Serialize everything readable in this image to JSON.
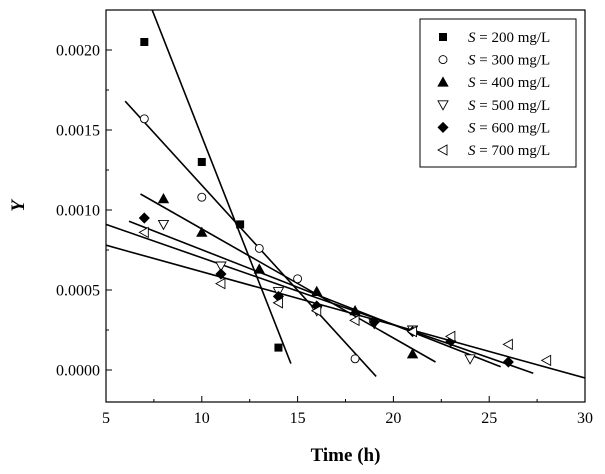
{
  "chart_data": {
    "type": "scatter",
    "title": "",
    "xlabel": "Time (h)",
    "ylabel": "Y",
    "xlim": [
      5,
      30
    ],
    "ylim": [
      -0.0002,
      0.00225
    ],
    "x_ticks": [
      5,
      10,
      15,
      20,
      25,
      30
    ],
    "x_tick_labels": [
      "5",
      "10",
      "15",
      "20",
      "25",
      "30"
    ],
    "y_ticks": [
      0.0,
      0.0005,
      0.001,
      0.0015,
      0.002
    ],
    "y_tick_labels": [
      "0.0000",
      "0.0005",
      "0.0010",
      "0.0015",
      "0.0020"
    ],
    "grid": false,
    "legend_position": "top-right",
    "series": [
      {
        "name": "S = 200 mg/L",
        "legend_italic": "S",
        "legend_rest": " = 200 mg/L",
        "marker": "square-filled",
        "points": [
          [
            7,
            0.00205
          ],
          [
            10,
            0.0013
          ],
          [
            12,
            0.00091
          ],
          [
            14,
            0.00014
          ]
        ],
        "fit_line": [
          [
            7.05,
            0.00236
          ],
          [
            14.65,
            4e-05
          ]
        ]
      },
      {
        "name": "S = 300 mg/L",
        "legend_italic": "S",
        "legend_rest": " = 300 mg/L",
        "marker": "circle-open",
        "points": [
          [
            7,
            0.00157
          ],
          [
            10,
            0.00108
          ],
          [
            13,
            0.00076
          ],
          [
            15,
            0.00057
          ],
          [
            18,
            7e-05
          ]
        ],
        "fit_line": [
          [
            6,
            0.00168
          ],
          [
            19.1,
            -4e-05
          ]
        ]
      },
      {
        "name": "S = 400 mg/L",
        "legend_italic": "S",
        "legend_rest": " = 400 mg/L",
        "marker": "triangle-up-filled",
        "points": [
          [
            8,
            0.00107
          ],
          [
            10,
            0.00086
          ],
          [
            13,
            0.00063
          ],
          [
            16,
            0.00049
          ],
          [
            18,
            0.00037
          ],
          [
            21,
            0.0001
          ]
        ],
        "fit_line": [
          [
            6.8,
            0.0011
          ],
          [
            22.2,
            5e-05
          ]
        ]
      },
      {
        "name": "S = 500 mg/L",
        "legend_italic": "S",
        "legend_rest": " = 500 mg/L",
        "marker": "triangle-down-open",
        "points": [
          [
            8,
            0.00091
          ],
          [
            11,
            0.00065
          ],
          [
            14,
            0.00049
          ],
          [
            16,
            0.00037
          ],
          [
            19,
            0.00029
          ],
          [
            21,
            0.00025
          ],
          [
            24,
            7e-05
          ]
        ],
        "fit_line": [
          [
            6.2,
            0.00093
          ],
          [
            25.6,
            2e-05
          ]
        ]
      },
      {
        "name": "S = 600 mg/L",
        "legend_italic": "S",
        "legend_rest": " = 600 mg/L",
        "marker": "diamond-filled",
        "points": [
          [
            7,
            0.00095
          ],
          [
            11,
            0.0006
          ],
          [
            14,
            0.00046
          ],
          [
            16,
            0.0004
          ],
          [
            19,
            0.0003
          ],
          [
            21,
            0.00024
          ],
          [
            23,
            0.00018
          ],
          [
            26,
            5e-05
          ]
        ],
        "fit_line": [
          [
            5,
            0.00091
          ],
          [
            27.3,
            -2e-05
          ]
        ]
      },
      {
        "name": "S = 700 mg/L",
        "legend_italic": "S",
        "legend_rest": " = 700 mg/L",
        "marker": "triangle-left-open",
        "points": [
          [
            7,
            0.00086
          ],
          [
            11,
            0.00054
          ],
          [
            14,
            0.00042
          ],
          [
            16,
            0.00037
          ],
          [
            18,
            0.00031
          ],
          [
            21,
            0.00024
          ],
          [
            23,
            0.00021
          ],
          [
            26,
            0.00016
          ],
          [
            28,
            6e-05
          ]
        ],
        "fit_line": [
          [
            5,
            0.00078
          ],
          [
            30,
            -5e-05
          ]
        ]
      }
    ]
  }
}
